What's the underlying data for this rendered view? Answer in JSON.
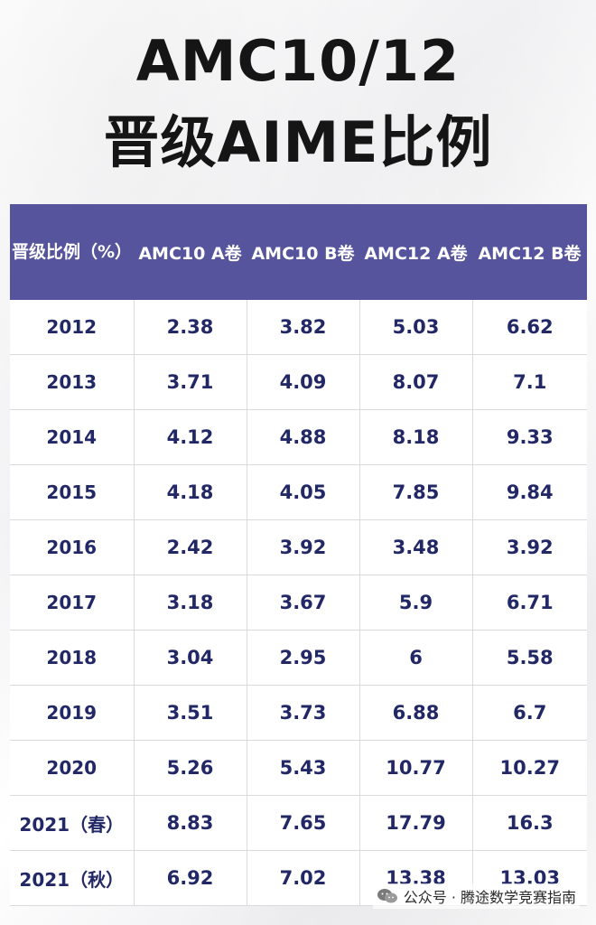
{
  "title": {
    "line1": "AMC10/12",
    "line2": "晋级AIME比例"
  },
  "table": {
    "corner_label": "晋级比例（%）",
    "columns": [
      "AMC10 A卷",
      "AMC10 B卷",
      "AMC12 A卷",
      "AMC12 B卷"
    ],
    "rows": [
      {
        "year": "2012",
        "values": [
          "2.38",
          "3.82",
          "5.03",
          "6.62"
        ]
      },
      {
        "year": "2013",
        "values": [
          "3.71",
          "4.09",
          "8.07",
          "7.1"
        ]
      },
      {
        "year": "2014",
        "values": [
          "4.12",
          "4.88",
          "8.18",
          "9.33"
        ]
      },
      {
        "year": "2015",
        "values": [
          "4.18",
          "4.05",
          "7.85",
          "9.84"
        ]
      },
      {
        "year": "2016",
        "values": [
          "2.42",
          "3.92",
          "3.48",
          "3.92"
        ]
      },
      {
        "year": "2017",
        "values": [
          "3.18",
          "3.67",
          "5.9",
          "6.71"
        ]
      },
      {
        "year": "2018",
        "values": [
          "3.04",
          "2.95",
          "6",
          "5.58"
        ]
      },
      {
        "year": "2019",
        "values": [
          "3.51",
          "3.73",
          "6.88",
          "6.7"
        ]
      },
      {
        "year": "2020",
        "values": [
          "5.26",
          "5.43",
          "10.77",
          "10.27"
        ]
      },
      {
        "year": "2021（春）",
        "values": [
          "8.83",
          "7.65",
          "17.79",
          "16.3"
        ]
      },
      {
        "year": "2021（秋）",
        "values": [
          "6.92",
          "7.02",
          "13.38",
          "13.03"
        ]
      }
    ]
  },
  "watermark": {
    "text": "公众号 · 腾途数学竞赛指南",
    "icon": "wechat-icon"
  },
  "colors": {
    "header_bg": "#55549c",
    "cell_text": "#222766",
    "title_text": "#151515"
  }
}
